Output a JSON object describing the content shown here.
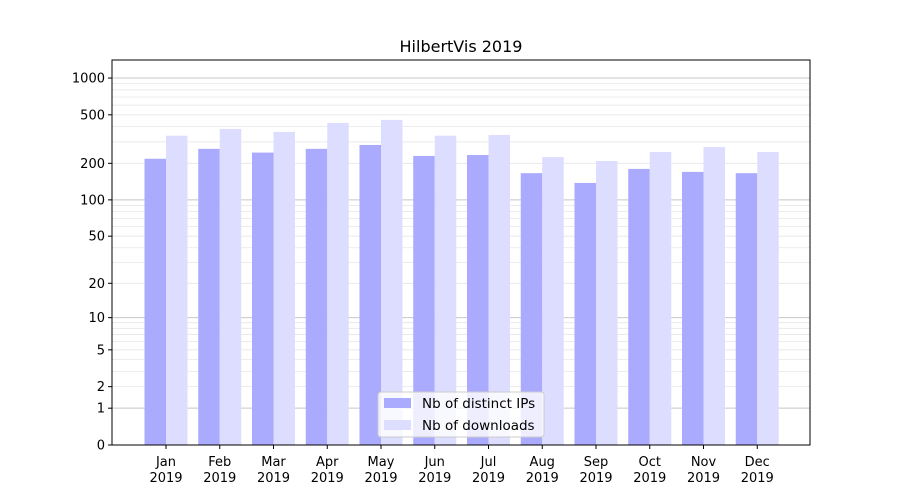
{
  "chart_data": {
    "type": "bar",
    "title": "HilbertVis 2019",
    "xlabel": "",
    "ylabel": "",
    "yscale": "symlog (log10(1+y))",
    "ylim": [
      0,
      1300
    ],
    "yticks": [
      0,
      1,
      2,
      5,
      10,
      20,
      50,
      100,
      200,
      500,
      1000
    ],
    "ytick_labels": [
      "0",
      "1",
      "2",
      "5",
      "10",
      "20",
      "50",
      "100",
      "200",
      "500",
      "1000"
    ],
    "categories": [
      "Jan\n2019",
      "Feb\n2019",
      "Mar\n2019",
      "Apr\n2019",
      "May\n2019",
      "Jun\n2019",
      "Jul\n2019",
      "Aug\n2019",
      "Sep\n2019",
      "Oct\n2019",
      "Nov\n2019",
      "Dec\n2019"
    ],
    "category_lines": [
      [
        "Jan",
        "2019"
      ],
      [
        "Feb",
        "2019"
      ],
      [
        "Mar",
        "2019"
      ],
      [
        "Apr",
        "2019"
      ],
      [
        "May",
        "2019"
      ],
      [
        "Jun",
        "2019"
      ],
      [
        "Jul",
        "2019"
      ],
      [
        "Aug",
        "2019"
      ],
      [
        "Sep",
        "2019"
      ],
      [
        "Oct",
        "2019"
      ],
      [
        "Nov",
        "2019"
      ],
      [
        "Dec",
        "2019"
      ]
    ],
    "series": [
      {
        "name": "Nb of distinct IPs",
        "color": "#aaaaff",
        "values": [
          218,
          263,
          245,
          263,
          283,
          230,
          234,
          166,
          138,
          180,
          170,
          166
        ]
      },
      {
        "name": "Nb of downloads",
        "color": "#ddddff",
        "values": [
          337,
          383,
          362,
          429,
          454,
          337,
          342,
          225,
          209,
          248,
          272,
          248
        ]
      }
    ],
    "grid": true,
    "legend": "lower center"
  }
}
